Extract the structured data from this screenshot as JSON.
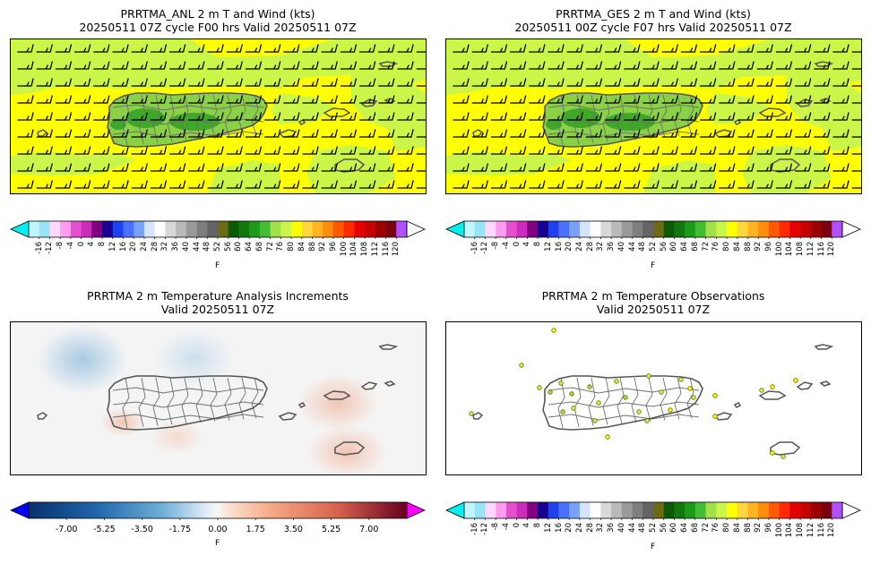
{
  "chart_data": [
    {
      "type": "heatmap",
      "title": "PRRTMA_ANL 2 m T and Wind (kts)",
      "subtitle": "20250511 07Z cycle F00 hrs Valid 20250511 07Z",
      "colorbar": {
        "unit": "F",
        "ticks": [
          "-16",
          "-12",
          "-8",
          "-4",
          "0",
          "4",
          "8",
          "12",
          "16",
          "20",
          "24",
          "28",
          "32",
          "36",
          "40",
          "44",
          "48",
          "52",
          "56",
          "60",
          "64",
          "68",
          "72",
          "76",
          "80",
          "84",
          "88",
          "92",
          "96",
          "100",
          "104",
          "108",
          "112",
          "116",
          "120"
        ],
        "extend": "both"
      },
      "field_range_F": [
        76,
        84
      ],
      "wind_barbs": "easterly, ~10 kts"
    },
    {
      "type": "heatmap",
      "title": "PRRTMA_GES 2 m T and Wind (kts)",
      "subtitle": "20250511 00Z cycle F07 hrs Valid 20250511 07Z",
      "colorbar": {
        "unit": "F",
        "ticks": [
          "-16",
          "-12",
          "-8",
          "-4",
          "0",
          "4",
          "8",
          "12",
          "16",
          "20",
          "24",
          "28",
          "32",
          "36",
          "40",
          "44",
          "48",
          "52",
          "56",
          "60",
          "64",
          "68",
          "72",
          "76",
          "80",
          "84",
          "88",
          "92",
          "96",
          "100",
          "104",
          "108",
          "112",
          "116",
          "120"
        ],
        "extend": "both"
      },
      "field_range_F": [
        76,
        84
      ],
      "wind_barbs": "easterly, ~10 kts"
    },
    {
      "type": "heatmap",
      "title": "PRRTMA 2 m Temperature Analysis Increments",
      "subtitle": "Valid 20250511 07Z",
      "colorbar": {
        "unit": "F",
        "ticks": [
          "-7.00",
          "-5.25",
          "-3.50",
          "-1.75",
          "0.00",
          "1.75",
          "3.50",
          "5.25",
          "7.00"
        ],
        "range": [
          -8.75,
          8.75
        ],
        "extend": "both"
      }
    },
    {
      "type": "scatter",
      "title": "PRRTMA 2 m Temperature Observations",
      "subtitle": "Valid 20250511 07Z",
      "colorbar": {
        "unit": "F",
        "ticks": [
          "-16",
          "-12",
          "-8",
          "-4",
          "0",
          "4",
          "8",
          "12",
          "16",
          "20",
          "24",
          "28",
          "32",
          "36",
          "40",
          "44",
          "48",
          "52",
          "56",
          "60",
          "64",
          "68",
          "72",
          "76",
          "80",
          "84",
          "88",
          "92",
          "96",
          "100",
          "104",
          "108",
          "112",
          "116",
          "120"
        ],
        "extend": "both"
      }
    }
  ],
  "colors": {
    "temp_palette": [
      "#c0f6ff",
      "#98e4f6",
      "#ffd8ff",
      "#ff9cf0",
      "#e44fd0",
      "#cc2cbc",
      "#800080",
      "#1a0090",
      "#2040f0",
      "#4a70ff",
      "#79a2f6",
      "#d6e4ff",
      "#ffffff",
      "#d8d8d8",
      "#bababa",
      "#9a9a9a",
      "#7e7e7e",
      "#646464",
      "#6c6c14",
      "#0a5a06",
      "#12780e",
      "#1c9a1a",
      "#44bc34",
      "#a2e04a",
      "#ccf54a",
      "#ffff00",
      "#ffd640",
      "#ffb420",
      "#ff8c0a",
      "#ff5a00",
      "#ff2a00",
      "#e40000",
      "#c40000",
      "#9c0000",
      "#7a0010",
      "#b050ff"
    ],
    "temp_under": "#00f0f0",
    "temp_over": "#ffffff",
    "inc_under": "#0000ff",
    "inc_over": "#ff00ff"
  }
}
